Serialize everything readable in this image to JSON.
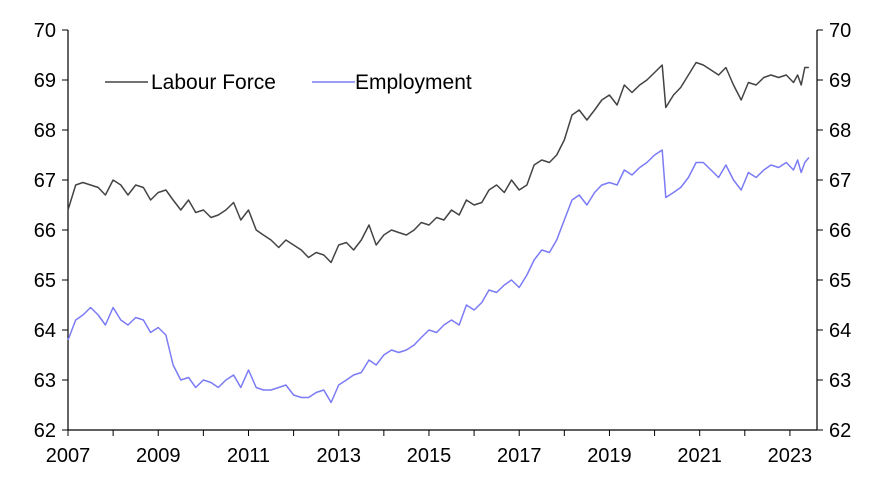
{
  "chart_data": {
    "type": "line",
    "title": "",
    "xlabel": "",
    "ylabel": "",
    "xlim": [
      2007.0,
      2023.6
    ],
    "ylim": [
      62,
      70
    ],
    "x_ticks": [
      "2007",
      "2009",
      "2011",
      "2013",
      "2015",
      "2017",
      "2019",
      "2021",
      "2023"
    ],
    "y_ticks": [
      "62",
      "63",
      "64",
      "65",
      "66",
      "67",
      "68",
      "69",
      "70"
    ],
    "right_axis_mirrors_left": true,
    "grid": false,
    "legend": "top-left",
    "series": [
      {
        "name": "Labour Force",
        "color": "#444444",
        "points": [
          [
            2007.0,
            66.4
          ],
          [
            2007.17,
            66.9
          ],
          [
            2007.33,
            66.95
          ],
          [
            2007.5,
            66.9
          ],
          [
            2007.67,
            66.85
          ],
          [
            2007.83,
            66.7
          ],
          [
            2008.0,
            67.0
          ],
          [
            2008.17,
            66.9
          ],
          [
            2008.33,
            66.7
          ],
          [
            2008.5,
            66.9
          ],
          [
            2008.67,
            66.85
          ],
          [
            2008.83,
            66.6
          ],
          [
            2009.0,
            66.75
          ],
          [
            2009.17,
            66.8
          ],
          [
            2009.33,
            66.6
          ],
          [
            2009.5,
            66.4
          ],
          [
            2009.67,
            66.6
          ],
          [
            2009.83,
            66.35
          ],
          [
            2010.0,
            66.4
          ],
          [
            2010.17,
            66.25
          ],
          [
            2010.33,
            66.3
          ],
          [
            2010.5,
            66.4
          ],
          [
            2010.67,
            66.55
          ],
          [
            2010.83,
            66.2
          ],
          [
            2011.0,
            66.4
          ],
          [
            2011.17,
            66.0
          ],
          [
            2011.33,
            65.9
          ],
          [
            2011.5,
            65.8
          ],
          [
            2011.67,
            65.65
          ],
          [
            2011.83,
            65.8
          ],
          [
            2012.0,
            65.7
          ],
          [
            2012.17,
            65.6
          ],
          [
            2012.33,
            65.45
          ],
          [
            2012.5,
            65.55
          ],
          [
            2012.67,
            65.5
          ],
          [
            2012.83,
            65.35
          ],
          [
            2013.0,
            65.7
          ],
          [
            2013.17,
            65.75
          ],
          [
            2013.33,
            65.6
          ],
          [
            2013.5,
            65.8
          ],
          [
            2013.67,
            66.1
          ],
          [
            2013.83,
            65.7
          ],
          [
            2014.0,
            65.9
          ],
          [
            2014.17,
            66.0
          ],
          [
            2014.33,
            65.95
          ],
          [
            2014.5,
            65.9
          ],
          [
            2014.67,
            66.0
          ],
          [
            2014.83,
            66.15
          ],
          [
            2015.0,
            66.1
          ],
          [
            2015.17,
            66.25
          ],
          [
            2015.33,
            66.2
          ],
          [
            2015.5,
            66.4
          ],
          [
            2015.67,
            66.3
          ],
          [
            2015.83,
            66.6
          ],
          [
            2016.0,
            66.5
          ],
          [
            2016.17,
            66.55
          ],
          [
            2016.33,
            66.8
          ],
          [
            2016.5,
            66.9
          ],
          [
            2016.67,
            66.75
          ],
          [
            2016.83,
            67.0
          ],
          [
            2017.0,
            66.8
          ],
          [
            2017.17,
            66.9
          ],
          [
            2017.33,
            67.3
          ],
          [
            2017.5,
            67.4
          ],
          [
            2017.67,
            67.35
          ],
          [
            2017.83,
            67.5
          ],
          [
            2018.0,
            67.8
          ],
          [
            2018.17,
            68.3
          ],
          [
            2018.33,
            68.4
          ],
          [
            2018.5,
            68.2
          ],
          [
            2018.67,
            68.4
          ],
          [
            2018.83,
            68.6
          ],
          [
            2019.0,
            68.7
          ],
          [
            2019.17,
            68.5
          ],
          [
            2019.33,
            68.9
          ],
          [
            2019.5,
            68.75
          ],
          [
            2019.67,
            68.9
          ],
          [
            2019.83,
            69.0
          ],
          [
            2020.0,
            69.15
          ],
          [
            2020.17,
            69.3
          ],
          [
            2020.25,
            68.45
          ],
          [
            2020.42,
            68.7
          ],
          [
            2020.58,
            68.85
          ],
          [
            2020.75,
            69.1
          ],
          [
            2020.92,
            69.35
          ],
          [
            2021.08,
            69.3
          ],
          [
            2021.25,
            69.2
          ],
          [
            2021.42,
            69.1
          ],
          [
            2021.58,
            69.25
          ],
          [
            2021.75,
            68.9
          ],
          [
            2021.92,
            68.6
          ],
          [
            2022.08,
            68.95
          ],
          [
            2022.25,
            68.9
          ],
          [
            2022.42,
            69.05
          ],
          [
            2022.58,
            69.1
          ],
          [
            2022.75,
            69.05
          ],
          [
            2022.92,
            69.1
          ],
          [
            2023.08,
            68.95
          ],
          [
            2023.17,
            69.1
          ],
          [
            2023.25,
            68.9
          ],
          [
            2023.33,
            69.25
          ],
          [
            2023.42,
            69.25
          ]
        ]
      },
      {
        "name": "Employment",
        "color": "#7b7bf5",
        "points": [
          [
            2007.0,
            63.8
          ],
          [
            2007.17,
            64.2
          ],
          [
            2007.33,
            64.3
          ],
          [
            2007.5,
            64.45
          ],
          [
            2007.67,
            64.3
          ],
          [
            2007.83,
            64.1
          ],
          [
            2008.0,
            64.45
          ],
          [
            2008.17,
            64.2
          ],
          [
            2008.33,
            64.1
          ],
          [
            2008.5,
            64.25
          ],
          [
            2008.67,
            64.2
          ],
          [
            2008.83,
            63.95
          ],
          [
            2009.0,
            64.05
          ],
          [
            2009.17,
            63.9
          ],
          [
            2009.33,
            63.3
          ],
          [
            2009.5,
            63.0
          ],
          [
            2009.67,
            63.05
          ],
          [
            2009.83,
            62.85
          ],
          [
            2010.0,
            63.0
          ],
          [
            2010.17,
            62.95
          ],
          [
            2010.33,
            62.85
          ],
          [
            2010.5,
            63.0
          ],
          [
            2010.67,
            63.1
          ],
          [
            2010.83,
            62.85
          ],
          [
            2011.0,
            63.2
          ],
          [
            2011.17,
            62.85
          ],
          [
            2011.33,
            62.8
          ],
          [
            2011.5,
            62.8
          ],
          [
            2011.67,
            62.85
          ],
          [
            2011.83,
            62.9
          ],
          [
            2012.0,
            62.7
          ],
          [
            2012.17,
            62.65
          ],
          [
            2012.33,
            62.65
          ],
          [
            2012.5,
            62.75
          ],
          [
            2012.67,
            62.8
          ],
          [
            2012.83,
            62.55
          ],
          [
            2013.0,
            62.9
          ],
          [
            2013.17,
            63.0
          ],
          [
            2013.33,
            63.1
          ],
          [
            2013.5,
            63.15
          ],
          [
            2013.67,
            63.4
          ],
          [
            2013.83,
            63.3
          ],
          [
            2014.0,
            63.5
          ],
          [
            2014.17,
            63.6
          ],
          [
            2014.33,
            63.55
          ],
          [
            2014.5,
            63.6
          ],
          [
            2014.67,
            63.7
          ],
          [
            2014.83,
            63.85
          ],
          [
            2015.0,
            64.0
          ],
          [
            2015.17,
            63.95
          ],
          [
            2015.33,
            64.1
          ],
          [
            2015.5,
            64.2
          ],
          [
            2015.67,
            64.1
          ],
          [
            2015.83,
            64.5
          ],
          [
            2016.0,
            64.4
          ],
          [
            2016.17,
            64.55
          ],
          [
            2016.33,
            64.8
          ],
          [
            2016.5,
            64.75
          ],
          [
            2016.67,
            64.9
          ],
          [
            2016.83,
            65.0
          ],
          [
            2017.0,
            64.85
          ],
          [
            2017.17,
            65.1
          ],
          [
            2017.33,
            65.4
          ],
          [
            2017.5,
            65.6
          ],
          [
            2017.67,
            65.55
          ],
          [
            2017.83,
            65.8
          ],
          [
            2018.0,
            66.2
          ],
          [
            2018.17,
            66.6
          ],
          [
            2018.33,
            66.7
          ],
          [
            2018.5,
            66.5
          ],
          [
            2018.67,
            66.75
          ],
          [
            2018.83,
            66.9
          ],
          [
            2019.0,
            66.95
          ],
          [
            2019.17,
            66.9
          ],
          [
            2019.33,
            67.2
          ],
          [
            2019.5,
            67.1
          ],
          [
            2019.67,
            67.25
          ],
          [
            2019.83,
            67.35
          ],
          [
            2020.0,
            67.5
          ],
          [
            2020.17,
            67.6
          ],
          [
            2020.25,
            66.65
          ],
          [
            2020.42,
            66.75
          ],
          [
            2020.58,
            66.85
          ],
          [
            2020.75,
            67.05
          ],
          [
            2020.92,
            67.35
          ],
          [
            2021.08,
            67.35
          ],
          [
            2021.25,
            67.2
          ],
          [
            2021.42,
            67.05
          ],
          [
            2021.58,
            67.3
          ],
          [
            2021.75,
            67.0
          ],
          [
            2021.92,
            66.8
          ],
          [
            2022.08,
            67.15
          ],
          [
            2022.25,
            67.05
          ],
          [
            2022.42,
            67.2
          ],
          [
            2022.58,
            67.3
          ],
          [
            2022.75,
            67.25
          ],
          [
            2022.92,
            67.35
          ],
          [
            2023.08,
            67.2
          ],
          [
            2023.17,
            67.4
          ],
          [
            2023.25,
            67.15
          ],
          [
            2023.33,
            67.35
          ],
          [
            2023.42,
            67.45
          ]
        ]
      }
    ]
  }
}
